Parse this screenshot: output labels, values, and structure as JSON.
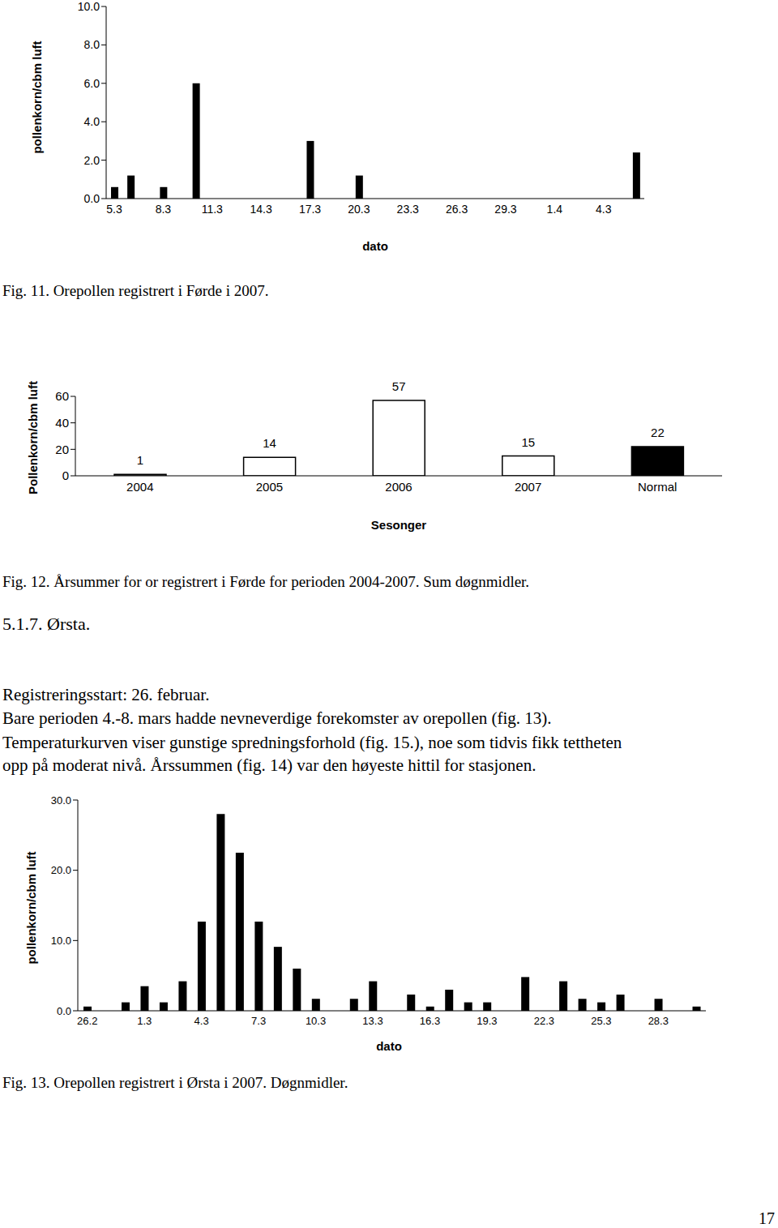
{
  "chart_data": [
    {
      "type": "bar",
      "xlabel": "dato",
      "ylabel": "pollenkorn/cbm luft",
      "categories": [
        "5.3",
        null,
        null,
        "8.3",
        null,
        null,
        "11.3",
        null,
        null,
        "14.3",
        null,
        null,
        "17.3",
        null,
        null,
        "20.3",
        null,
        null,
        "23.3",
        null,
        null,
        "26.3",
        null,
        null,
        "29.3",
        null,
        null,
        "1.4",
        null,
        null,
        "4.3",
        null,
        null
      ],
      "values": [
        0.6,
        1.2,
        0,
        0.6,
        0,
        6.0,
        0,
        0,
        0,
        0,
        0,
        0,
        3.0,
        0,
        0,
        1.2,
        0,
        0,
        0,
        0,
        0,
        0,
        0,
        0,
        0,
        0,
        0,
        0,
        0,
        0,
        0,
        0,
        2.4
      ],
      "color": "#000000",
      "ylim": [
        0,
        10
      ],
      "yticks": [
        {
          "value": 0,
          "label": "0.0"
        },
        {
          "value": 2,
          "label": "2.0"
        },
        {
          "value": 4,
          "label": "4.0"
        },
        {
          "value": 6,
          "label": "6.0"
        },
        {
          "value": 8,
          "label": "8.0"
        },
        {
          "value": 10,
          "label": "10.0"
        }
      ],
      "grid": false
    },
    {
      "type": "bar",
      "xlabel": "Sesonger",
      "ylabel": "Pollenkorn/cbm luft",
      "categories": [
        "2004",
        "2005",
        "2006",
        "2007",
        "Normal"
      ],
      "values": [
        1,
        14,
        57,
        15,
        22
      ],
      "colors": [
        "#ffffff",
        "#ffffff",
        "#ffffff",
        "#ffffff",
        "#000000"
      ],
      "ylim": [
        0,
        60
      ],
      "yticks": [
        0,
        20,
        40,
        60
      ],
      "data_labels": true,
      "grid": false
    },
    {
      "type": "bar",
      "xlabel": "dato",
      "ylabel": "pollenkorn/cbm luft",
      "categories": [
        "26.2",
        null,
        null,
        "1.3",
        null,
        null,
        "4.3",
        null,
        null,
        "7.3",
        null,
        null,
        "10.3",
        null,
        null,
        "13.3",
        null,
        null,
        "16.3",
        null,
        null,
        "19.3",
        null,
        null,
        "22.3",
        null,
        null,
        "25.3",
        null,
        null,
        "28.3",
        null,
        null
      ],
      "values": [
        0.6,
        0,
        1.2,
        3.5,
        1.2,
        4.2,
        12.7,
        28.0,
        22.5,
        12.7,
        9.1,
        6.0,
        1.7,
        0,
        1.7,
        4.2,
        0,
        2.3,
        0.6,
        3.0,
        1.2,
        1.2,
        0,
        4.8,
        0,
        4.2,
        1.7,
        1.2,
        2.3,
        0,
        1.7,
        0,
        0.6
      ],
      "color": "#000000",
      "ylim": [
        0,
        30
      ],
      "yticks": [
        {
          "value": 0,
          "label": "0.0"
        },
        {
          "value": 10,
          "label": "10.0"
        },
        {
          "value": 20,
          "label": "20.0"
        },
        {
          "value": 30,
          "label": "30.0"
        }
      ],
      "grid": false
    }
  ],
  "document": {
    "captions": [
      "Fig. 11. Orepollen registrert i Førde i 2007.",
      "Fig. 12. Årsummer for or registrert i Førde for perioden 2004-2007. Sum døgnmidler.",
      "Fig. 13. Orepollen registrert i Ørsta i 2007. Døgnmidler."
    ],
    "heading": "5.1.7. Ørsta.",
    "paragraph": [
      "Registreringsstart: 26. februar.",
      "Bare perioden 4.-8. mars hadde nevneverdige forekomster av orepollen (fig. 13).",
      "Temperaturkurven viser gunstige spredningsforhold (fig. 15.), noe som tidvis fikk tettheten",
      "opp på moderat nivå. Årssummen (fig. 14) var den høyeste hittil for stasjonen."
    ],
    "page_number": 17
  }
}
